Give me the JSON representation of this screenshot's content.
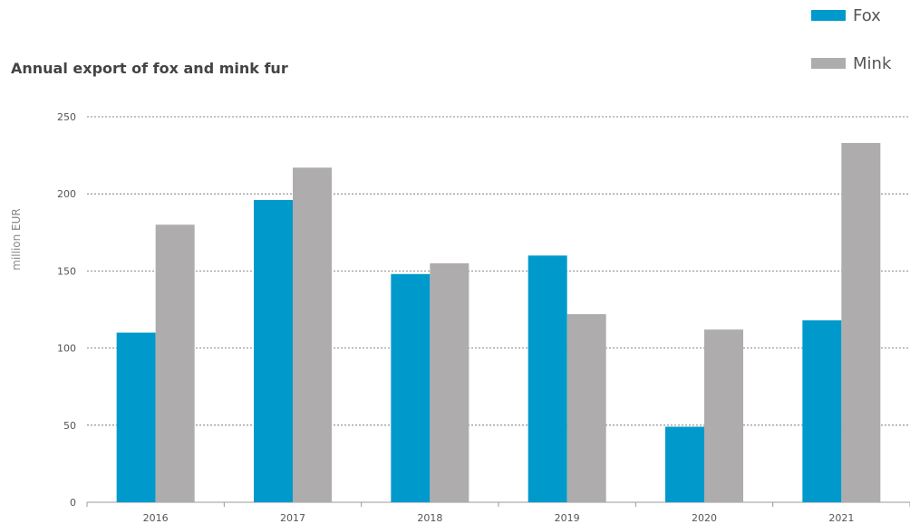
{
  "chart_data": {
    "type": "bar",
    "title": "Annual export of fox and mink fur",
    "xlabel": "",
    "ylabel": "million EUR",
    "categories": [
      "2016",
      "2017",
      "2018",
      "2019",
      "2020",
      "2021"
    ],
    "series": [
      {
        "name": "Fox",
        "color": "#0099cc",
        "values": [
          110,
          196,
          148,
          160,
          49,
          118
        ]
      },
      {
        "name": "Mink",
        "color": "#aeacac",
        "values": [
          180,
          217,
          155,
          122,
          112,
          233
        ]
      }
    ],
    "ylim": [
      0,
      250
    ],
    "yticks": [
      0,
      50,
      100,
      150,
      200,
      250
    ],
    "grid": true,
    "legend_position": "top-right"
  }
}
